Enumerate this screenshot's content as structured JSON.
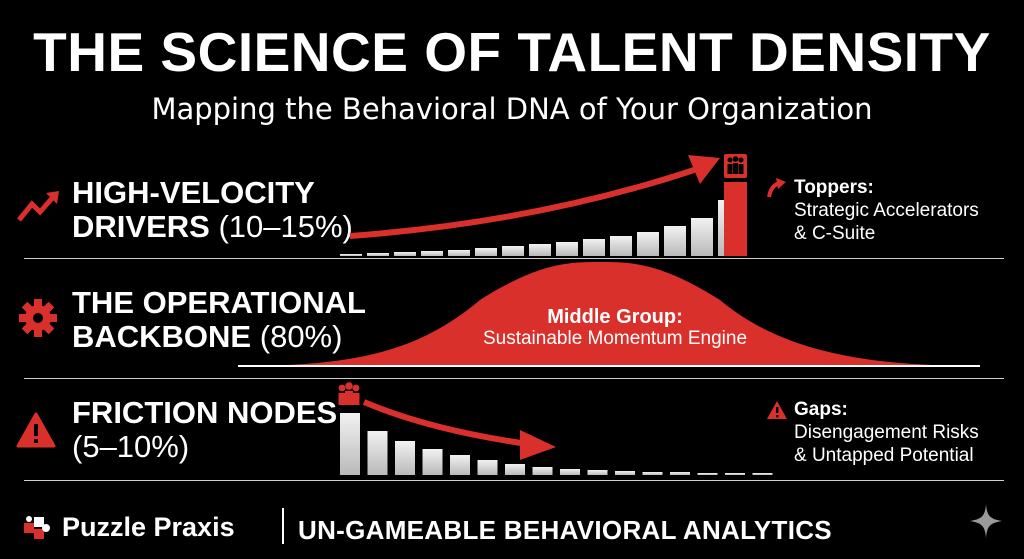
{
  "title": "THE SCIENCE OF TALENT DENSITY",
  "subtitle": "Mapping the Behavioral DNA of Your Organization",
  "colors": {
    "accent": "#d9302c",
    "bar": "#d9d9d9",
    "background": "#000000"
  },
  "rows": [
    {
      "icon": "trending-up-icon",
      "label_line1": "HIGH-VELOCITY",
      "label_line2": "DRIVERS",
      "percent": "(10–15%)",
      "note_head": "Toppers:",
      "note_line1": "Strategic Accelerators",
      "note_line2": "& C-Suite"
    },
    {
      "icon": "gear-icon",
      "label_line1": "THE OPERATIONAL",
      "label_line2": "BACKBONE",
      "percent": "(80%)",
      "curve_head": "Middle Group:",
      "curve_sub": "Sustainable Momentum Engine"
    },
    {
      "icon": "warning-icon",
      "label_line1": "FRICTION NODES",
      "label_line2": "",
      "percent": "(5–10%)",
      "note_head": "Gaps:",
      "note_line1": "Disengagement Risks",
      "note_line2": "& Untapped Potential"
    }
  ],
  "footer": {
    "brand": "Puzzle Praxis",
    "tagline": "UN-GAMEABLE BEHAVIORAL ANALYTICS"
  }
}
